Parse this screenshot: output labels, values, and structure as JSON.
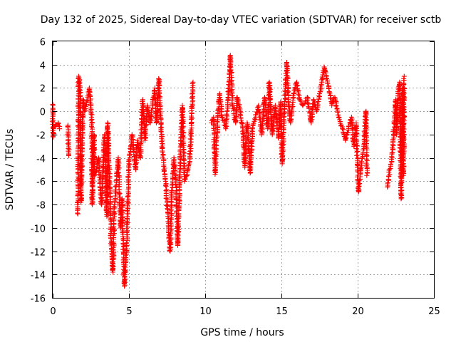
{
  "chart_data": {
    "type": "scatter",
    "title": "Day 132 of 2025, Sidereal Day-to-day VTEC variation (SDTVAR) for receiver sctb",
    "xlabel": "GPS time / hours",
    "ylabel": "SDTVAR / TECUs",
    "xlim": [
      0,
      25
    ],
    "ylim": [
      -16,
      6
    ],
    "xticks": [
      0,
      5,
      10,
      15,
      20,
      25
    ],
    "yticks": [
      -16,
      -14,
      -12,
      -10,
      -8,
      -6,
      -4,
      -2,
      0,
      2,
      4,
      6
    ],
    "grid": true,
    "marker": "+",
    "series": [
      {
        "name": "SDTVAR",
        "color": "#ff0000",
        "anchors": [
          [
            0.0,
            0.6
          ],
          [
            0.02,
            -2.2
          ],
          [
            0.05,
            -1.4
          ],
          [
            0.35,
            -1.0
          ],
          [
            0.45,
            -1.5
          ],
          [
            1.0,
            -1.2
          ],
          [
            1.05,
            -3.8
          ],
          [
            1.65,
            -8.8
          ],
          [
            1.7,
            3.0
          ],
          [
            1.75,
            2.6
          ],
          [
            1.8,
            1.8
          ],
          [
            1.85,
            -7.8
          ],
          [
            2.0,
            1.0
          ],
          [
            2.1,
            0.0
          ],
          [
            2.4,
            2.0
          ],
          [
            2.55,
            -0.5
          ],
          [
            2.6,
            -8.0
          ],
          [
            2.7,
            -2.0
          ],
          [
            2.75,
            -5.5
          ],
          [
            3.0,
            -4.0
          ],
          [
            3.2,
            -8.0
          ],
          [
            3.4,
            -2.0
          ],
          [
            3.55,
            -9.0
          ],
          [
            3.6,
            -1.0
          ],
          [
            3.75,
            -7.0
          ],
          [
            3.85,
            -12.0
          ],
          [
            3.95,
            -13.8
          ],
          [
            4.05,
            -8.0
          ],
          [
            4.2,
            -5.5
          ],
          [
            4.3,
            -4.0
          ],
          [
            4.45,
            -10.0
          ],
          [
            4.55,
            -7.5
          ],
          [
            4.7,
            -15.0
          ],
          [
            4.85,
            -11.5
          ],
          [
            5.0,
            -4.5
          ],
          [
            5.2,
            -2.0
          ],
          [
            5.45,
            -5.0
          ],
          [
            5.55,
            -2.5
          ],
          [
            5.75,
            -4.0
          ],
          [
            5.9,
            1.0
          ],
          [
            6.05,
            -2.5
          ],
          [
            6.2,
            0.5
          ],
          [
            6.4,
            -1.0
          ],
          [
            6.55,
            0.8
          ],
          [
            6.7,
            2.0
          ],
          [
            6.8,
            -1.0
          ],
          [
            6.95,
            2.8
          ],
          [
            7.05,
            0.0
          ],
          [
            7.2,
            -3.5
          ],
          [
            7.4,
            -6.0
          ],
          [
            7.55,
            -9.0
          ],
          [
            7.7,
            -12.0
          ],
          [
            7.8,
            -7.0
          ],
          [
            7.95,
            -4.0
          ],
          [
            8.1,
            -6.5
          ],
          [
            8.2,
            -11.5
          ],
          [
            8.35,
            -5.0
          ],
          [
            8.5,
            0.5
          ],
          [
            8.65,
            -6.0
          ],
          [
            8.8,
            -5.5
          ],
          [
            9.0,
            -4.0
          ],
          [
            9.1,
            -1.0
          ],
          [
            9.2,
            2.5
          ],
          [
            10.4,
            -1.0
          ],
          [
            10.55,
            -0.5
          ],
          [
            10.65,
            -5.4
          ],
          [
            10.8,
            -1.0
          ],
          [
            10.95,
            1.5
          ],
          [
            11.1,
            -0.5
          ],
          [
            11.35,
            -1.5
          ],
          [
            11.5,
            1.0
          ],
          [
            11.65,
            4.8
          ],
          [
            11.8,
            0.5
          ],
          [
            12.0,
            -1.0
          ],
          [
            12.1,
            1.2
          ],
          [
            12.3,
            0.0
          ],
          [
            12.5,
            -2.0
          ],
          [
            12.6,
            -4.8
          ],
          [
            12.75,
            -1.0
          ],
          [
            12.85,
            -3.0
          ],
          [
            12.95,
            -5.3
          ],
          [
            13.1,
            -1.5
          ],
          [
            13.3,
            -0.5
          ],
          [
            13.5,
            0.5
          ],
          [
            13.7,
            -2.0
          ],
          [
            13.9,
            1.2
          ],
          [
            14.1,
            -1.5
          ],
          [
            14.2,
            2.5
          ],
          [
            14.4,
            -2.0
          ],
          [
            14.6,
            0.5
          ],
          [
            14.8,
            -2.3
          ],
          [
            14.95,
            0.8
          ],
          [
            15.05,
            -4.5
          ],
          [
            15.2,
            0.5
          ],
          [
            15.35,
            4.2
          ],
          [
            15.45,
            1.0
          ],
          [
            15.6,
            -1.0
          ],
          [
            15.8,
            1.5
          ],
          [
            16.0,
            2.5
          ],
          [
            16.2,
            1.0
          ],
          [
            16.4,
            0.5
          ],
          [
            16.7,
            1.2
          ],
          [
            16.95,
            -1.0
          ],
          [
            17.1,
            1.0
          ],
          [
            17.3,
            0.0
          ],
          [
            17.5,
            1.5
          ],
          [
            17.65,
            2.5
          ],
          [
            17.8,
            3.8
          ],
          [
            17.95,
            3.0
          ],
          [
            18.1,
            2.0
          ],
          [
            18.3,
            0.5
          ],
          [
            18.5,
            1.2
          ],
          [
            18.75,
            -0.5
          ],
          [
            19.0,
            -1.5
          ],
          [
            19.2,
            -2.5
          ],
          [
            19.4,
            -1.5
          ],
          [
            19.6,
            -0.5
          ],
          [
            19.75,
            -3.0
          ],
          [
            19.9,
            -1.0
          ],
          [
            20.05,
            -6.9
          ],
          [
            20.2,
            -5.0
          ],
          [
            20.4,
            -3.0
          ],
          [
            20.55,
            0.0
          ],
          [
            20.6,
            -5.5
          ],
          [
            21.95,
            -6.5
          ],
          [
            22.1,
            -5.0
          ],
          [
            22.25,
            -4.0
          ],
          [
            22.4,
            -1.0
          ],
          [
            22.5,
            1.0
          ],
          [
            22.55,
            -2.0
          ],
          [
            22.65,
            1.5
          ],
          [
            22.75,
            2.5
          ],
          [
            22.85,
            -7.5
          ],
          [
            22.95,
            2.0
          ],
          [
            23.0,
            -5.5
          ],
          [
            23.05,
            3.0
          ]
        ]
      }
    ]
  }
}
